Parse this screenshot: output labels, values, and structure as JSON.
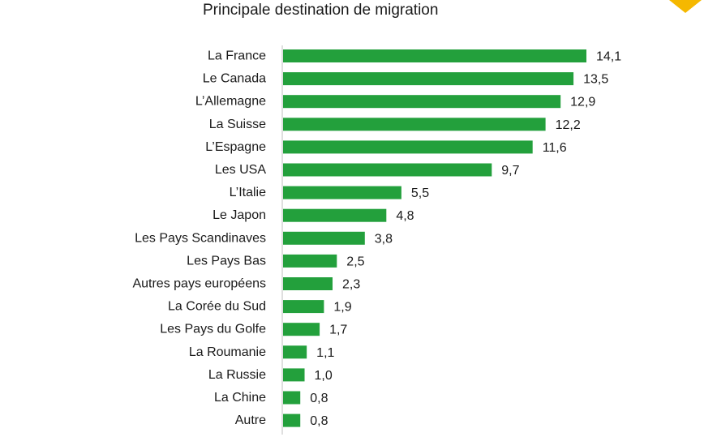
{
  "chart_data": {
    "type": "bar",
    "orientation": "horizontal",
    "title": "Principale destination de migration",
    "xlabel": "",
    "ylabel": "",
    "categories": [
      "La France",
      "Le Canada",
      "L’Allemagne",
      "La Suisse",
      "L’Espagne",
      "Les USA",
      "L’Italie",
      "Le Japon",
      "Les Pays Scandinaves",
      "Les Pays Bas",
      "Autres pays européens",
      "La Corée du Sud",
      "Les Pays du Golfe",
      "La Roumanie",
      "La Russie",
      "La Chine",
      "Autre"
    ],
    "values": [
      14.1,
      13.5,
      12.9,
      12.2,
      11.6,
      9.7,
      5.5,
      4.8,
      3.8,
      2.5,
      2.3,
      1.9,
      1.7,
      1.1,
      1.0,
      0.8,
      0.8
    ],
    "value_labels": [
      "14,1",
      "13,5",
      "12,9",
      "12,2",
      "11,6",
      "9,7",
      "5,5",
      "4,8",
      "3,8",
      "2,5",
      "2,3",
      "1,9",
      "1,7",
      "1,1",
      "1,0",
      "0,8",
      "0,8"
    ],
    "xlim": [
      0,
      14.1
    ],
    "grid": false,
    "legend": "none",
    "colors": {
      "bar": "#23a03c",
      "axis": "#bfbfbf",
      "text": "#1a1a1a",
      "accent_shape": "#f5b800"
    }
  },
  "decorations": {
    "corner_mark_icon": "yellow-diamond-icon"
  }
}
